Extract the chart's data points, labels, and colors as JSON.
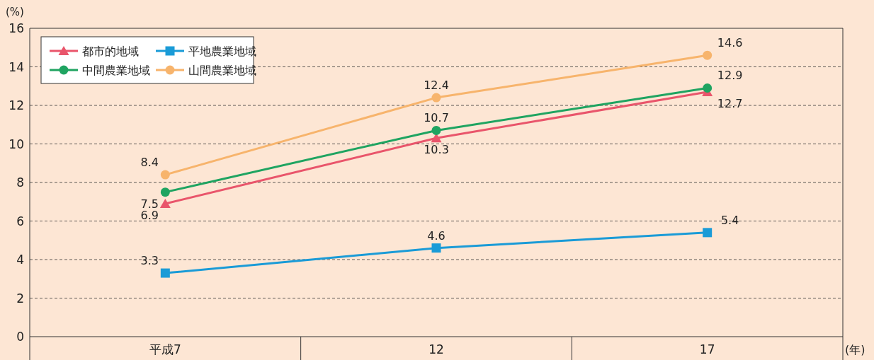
{
  "chart_data": {
    "type": "line",
    "ylabel": "(%)",
    "xlabel": "(年)",
    "categories": [
      "平成7",
      "12",
      "17"
    ],
    "ylim": [
      0,
      16
    ],
    "yticks": [
      0,
      2,
      4,
      6,
      8,
      10,
      12,
      14,
      16
    ],
    "grid": "y",
    "legend": "top left",
    "data_labels": true,
    "series": [
      {
        "name": "都市的地域",
        "color": "#e9556b",
        "marker": "triangle",
        "values": [
          6.9,
          10.3,
          12.7
        ]
      },
      {
        "name": "平地農業地域",
        "color": "#1a9bd7",
        "marker": "square",
        "values": [
          3.3,
          4.6,
          5.4
        ]
      },
      {
        "name": "中間農業地域",
        "color": "#1fa461",
        "marker": "circle",
        "values": [
          7.5,
          10.7,
          12.9
        ]
      },
      {
        "name": "山間農業地域",
        "color": "#f7b46c",
        "marker": "circle",
        "values": [
          8.4,
          12.4,
          14.6
        ]
      }
    ]
  }
}
